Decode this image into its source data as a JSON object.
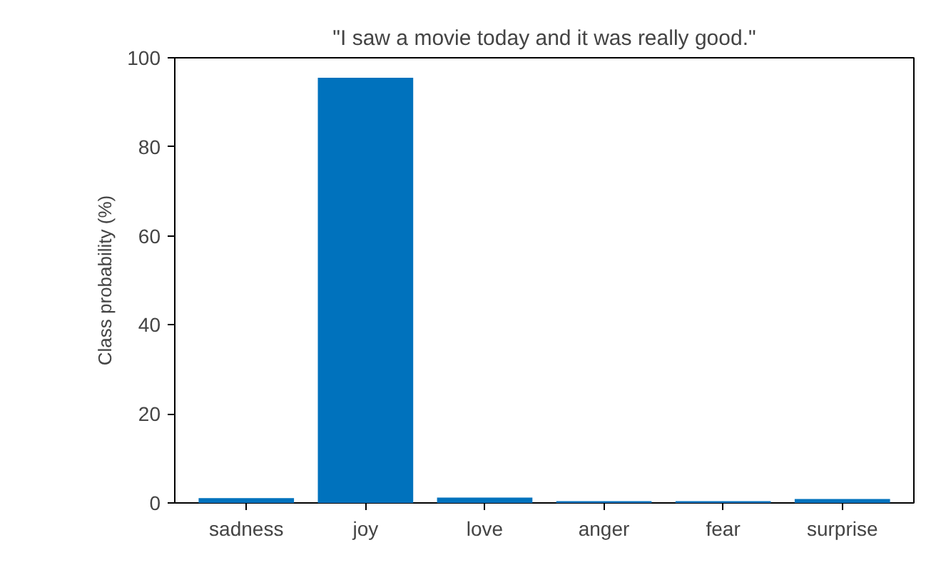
{
  "chart_data": {
    "type": "bar",
    "title": "\"I saw a movie today and it was really good.\"",
    "ylabel": "Class probability (%)",
    "categories": [
      "sadness",
      "joy",
      "love",
      "anger",
      "fear",
      "surprise"
    ],
    "values": [
      1.1,
      95.5,
      1.2,
      0.4,
      0.4,
      0.9
    ],
    "color": "#0072bd",
    "ylim": [
      0,
      100
    ],
    "yticks": [
      0,
      20,
      40,
      60,
      80,
      100
    ],
    "grid": false
  }
}
